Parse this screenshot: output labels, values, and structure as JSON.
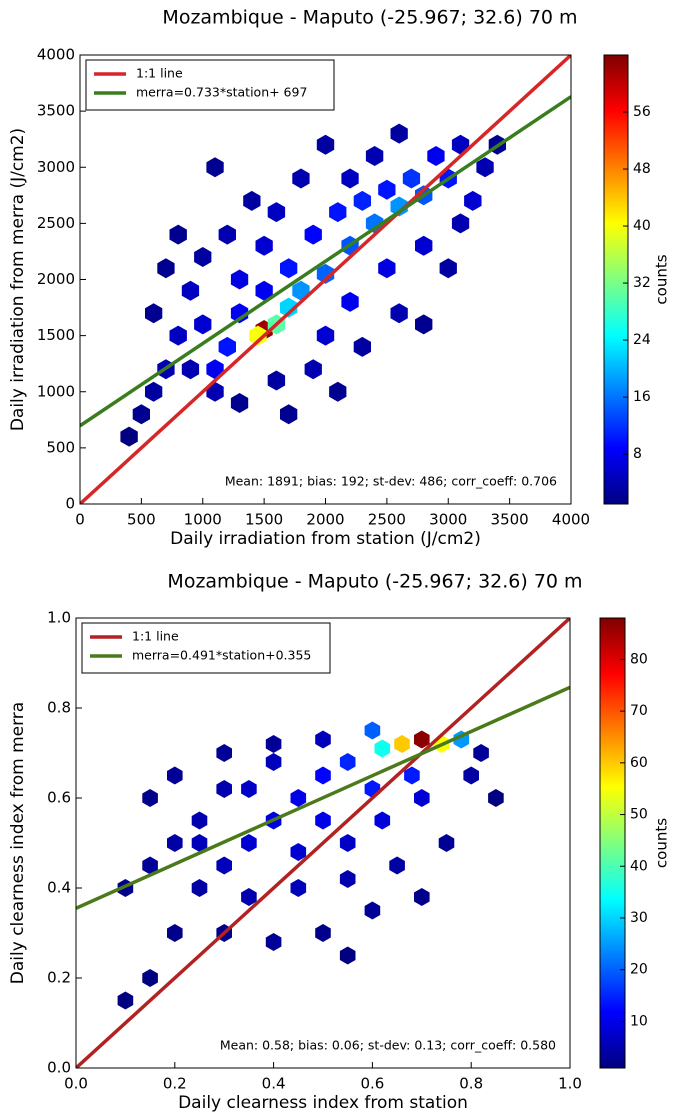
{
  "chart_data": [
    {
      "type": "hexbin",
      "title": "Mozambique - Maputo (-25.967; 32.6) 70 m",
      "x_label": "Daily irradiation from station (J/cm2)",
      "y_label": "Daily irradiation from merra (J/cm2)",
      "xlim": [
        0,
        4000
      ],
      "ylim": [
        0,
        4000
      ],
      "xticks": [
        0,
        500,
        1000,
        1500,
        2000,
        2500,
        3000,
        3500,
        4000
      ],
      "yticks": [
        0,
        500,
        1000,
        1500,
        2000,
        2500,
        3000,
        3500,
        4000
      ],
      "legend": "upper left",
      "series": [
        {
          "name": "1:1 line",
          "color": "#d62728",
          "x": [
            0,
            4000
          ],
          "values": [
            0,
            4000
          ]
        },
        {
          "name": "merra=0.733*station+  697",
          "color": "#3a7d1e",
          "x": [
            0,
            4000
          ],
          "values": [
            697,
            3629
          ]
        }
      ],
      "annotation": "Mean: 1891; bias: 192; st-dev: 486; corr_coeff: 0.706",
      "colorbar_label": "counts",
      "colorbar_lim": [
        1,
        64
      ],
      "colorbar_ticks": [
        8,
        16,
        24,
        32,
        40,
        48,
        56
      ],
      "hexbins": {
        "x": [
          1500,
          1450,
          1600,
          1700,
          1800,
          2000,
          2200,
          2400,
          2600,
          2800,
          3000,
          2700,
          2500,
          2900,
          3100,
          3200,
          3300,
          3400,
          1200,
          1100,
          1000,
          900,
          800,
          700,
          600,
          500,
          400,
          1300,
          1500,
          1600,
          1800,
          1400,
          1200,
          1000,
          800,
          1100,
          2000,
          2200,
          2400,
          2600,
          2000,
          2200,
          2500,
          2800,
          3000,
          2600,
          2300,
          1900,
          1600,
          1300,
          1700,
          2100,
          2800,
          3100,
          1700,
          1900,
          2100,
          2300,
          1500,
          1300,
          1100,
          900,
          600,
          700
        ],
        "y": [
          1550,
          1500,
          1600,
          1750,
          1900,
          2050,
          2300,
          2500,
          2650,
          2750,
          2900,
          2900,
          2800,
          3100,
          3200,
          2700,
          3000,
          3200,
          1400,
          1200,
          1600,
          1900,
          1500,
          1200,
          1000,
          800,
          600,
          2000,
          2300,
          2600,
          2900,
          2700,
          2400,
          2200,
          2400,
          3000,
          3200,
          2900,
          3100,
          3300,
          1500,
          1800,
          2100,
          2300,
          2100,
          1700,
          1400,
          1200,
          1100,
          900,
          800,
          1000,
          1600,
          2500,
          2100,
          2400,
          2600,
          2700,
          1900,
          1700,
          1000,
          1200,
          1700,
          2100
        ],
        "counts": [
          62,
          40,
          30,
          22,
          18,
          15,
          14,
          16,
          18,
          14,
          10,
          12,
          10,
          8,
          5,
          6,
          4,
          2,
          10,
          8,
          6,
          5,
          5,
          4,
          3,
          2,
          1,
          7,
          6,
          5,
          4,
          3,
          4,
          3,
          2,
          2,
          3,
          5,
          4,
          3,
          6,
          8,
          7,
          6,
          3,
          4,
          3,
          4,
          3,
          2,
          2,
          2,
          2,
          4,
          10,
          9,
          10,
          11,
          8,
          8,
          4,
          4,
          2,
          2
        ]
      }
    },
    {
      "type": "hexbin",
      "title": "Mozambique - Maputo (-25.967; 32.6) 70 m",
      "x_label": "Daily clearness index from station",
      "y_label": "Daily clearness index from merra",
      "xlim": [
        0,
        1
      ],
      "ylim": [
        0,
        1
      ],
      "xticks": [
        {
          "value": 0,
          "label": "0.0"
        },
        0.2,
        0.4,
        0.6,
        0.8,
        {
          "value": 1,
          "label": "1.0"
        }
      ],
      "yticks": [
        {
          "value": 0,
          "label": "0.0"
        },
        0.2,
        0.4,
        0.6,
        0.8,
        {
          "value": 1,
          "label": "1.0"
        }
      ],
      "legend": "upper left",
      "series": [
        {
          "name": "1:1 line",
          "color": "#b22222",
          "x": [
            0,
            1
          ],
          "values": [
            0,
            1
          ]
        },
        {
          "name": "merra=0.491*station+0.355",
          "color": "#4a7a1a",
          "x": [
            0,
            1
          ],
          "values": [
            0.355,
            0.846
          ]
        }
      ],
      "annotation": "Mean: 0.58; bias: 0.06; st-dev: 0.13; corr_coeff: 0.580",
      "colorbar_label": "counts",
      "colorbar_lim": [
        1,
        88
      ],
      "colorbar_ticks": [
        10,
        20,
        30,
        40,
        50,
        60,
        70,
        80
      ],
      "hexbins": {
        "x": [
          0.7,
          0.66,
          0.74,
          0.62,
          0.78,
          0.55,
          0.5,
          0.6,
          0.68,
          0.45,
          0.4,
          0.5,
          0.35,
          0.3,
          0.45,
          0.55,
          0.62,
          0.7,
          0.25,
          0.2,
          0.15,
          0.1,
          0.2,
          0.3,
          0.4,
          0.25,
          0.35,
          0.45,
          0.55,
          0.65,
          0.75,
          0.8,
          0.82,
          0.6,
          0.5,
          0.4,
          0.3,
          0.2,
          0.15,
          0.1,
          0.55,
          0.7,
          0.85,
          0.35,
          0.15,
          0.6,
          0.5,
          0.4,
          0.3,
          0.25
        ],
        "y": [
          0.73,
          0.72,
          0.72,
          0.71,
          0.73,
          0.68,
          0.65,
          0.62,
          0.65,
          0.6,
          0.55,
          0.55,
          0.5,
          0.45,
          0.48,
          0.5,
          0.55,
          0.6,
          0.55,
          0.5,
          0.45,
          0.4,
          0.65,
          0.7,
          0.68,
          0.4,
          0.38,
          0.4,
          0.42,
          0.45,
          0.5,
          0.65,
          0.7,
          0.35,
          0.3,
          0.28,
          0.3,
          0.3,
          0.2,
          0.15,
          0.25,
          0.38,
          0.6,
          0.62,
          0.6,
          0.75,
          0.73,
          0.72,
          0.62,
          0.5
        ],
        "counts": [
          87,
          60,
          55,
          35,
          25,
          15,
          12,
          14,
          14,
          10,
          9,
          10,
          8,
          6,
          8,
          7,
          9,
          8,
          5,
          4,
          3,
          2,
          3,
          3,
          6,
          4,
          5,
          6,
          5,
          4,
          3,
          4,
          3,
          3,
          2,
          3,
          2,
          2,
          1,
          1,
          1,
          2,
          1,
          7,
          2,
          20,
          6,
          3,
          5,
          6
        ]
      }
    }
  ]
}
